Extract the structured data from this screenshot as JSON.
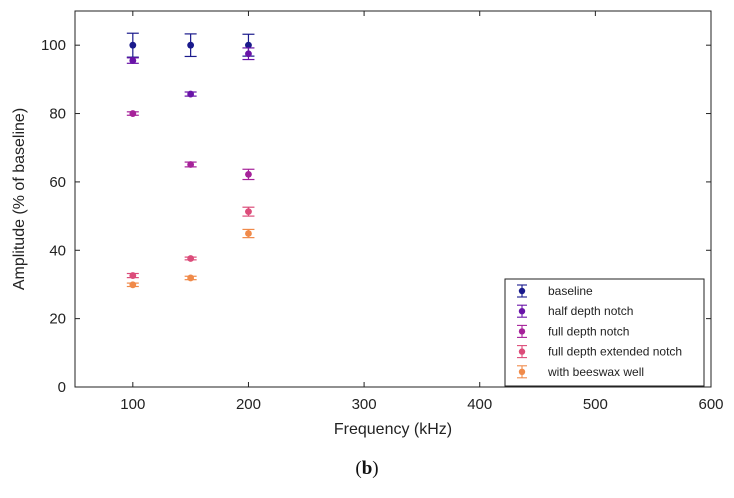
{
  "caption": {
    "open": "(",
    "letter": "b",
    "close": ")"
  },
  "chart_data": {
    "type": "scatter",
    "xlabel": "Frequency (kHz)",
    "ylabel": "Amplitude (% of baseline)",
    "xlim": [
      50,
      600
    ],
    "ylim": [
      0,
      110
    ],
    "x_ticks": [
      100,
      200,
      300,
      400,
      500,
      600
    ],
    "y_ticks": [
      0,
      20,
      40,
      60,
      80,
      100
    ],
    "grid": false,
    "error_bars": true,
    "legend_position": "lower-right",
    "series": [
      {
        "name": "baseline",
        "color": "#1a1a8c",
        "x": [
          100,
          150,
          200
        ],
        "y": [
          100,
          100,
          100
        ],
        "err": [
          3.5,
          3.3,
          3.2
        ]
      },
      {
        "name": "half depth notch",
        "color": "#6a14a8",
        "x": [
          100,
          150,
          200
        ],
        "y": [
          95.5,
          85.7,
          97.5
        ],
        "err": [
          0.8,
          0.6,
          1.7
        ]
      },
      {
        "name": "full depth notch",
        "color": "#a6229a",
        "x": [
          100,
          150,
          200
        ],
        "y": [
          80,
          65.1,
          62.2
        ],
        "err": [
          0.5,
          0.7,
          1.5
        ]
      },
      {
        "name": "full depth extended notch",
        "color": "#dc4c7a",
        "x": [
          100,
          150,
          200
        ],
        "y": [
          32.6,
          37.6,
          51.3
        ],
        "err": [
          0.6,
          0.4,
          1.3
        ]
      },
      {
        "name": "with beeswax well",
        "color": "#f08a4a",
        "x": [
          100,
          150,
          200
        ],
        "y": [
          29.9,
          31.9,
          44.9
        ],
        "err": [
          0.5,
          0.5,
          1.2
        ]
      }
    ]
  }
}
